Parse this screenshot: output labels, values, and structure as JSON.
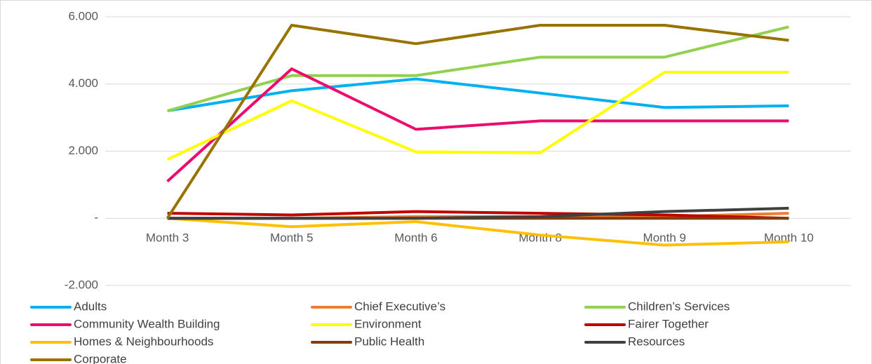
{
  "chart_data": {
    "type": "line",
    "categories": [
      "Month 3",
      "Month 5",
      "Month 6",
      "Month 8",
      "Month 9",
      "Month 10"
    ],
    "ylim": [
      -2000,
      6000
    ],
    "yticks": [
      {
        "value": -2000,
        "label": "-2.000"
      },
      {
        "value": 0,
        "label": "-"
      },
      {
        "value": 2000,
        "label": "2.000"
      },
      {
        "value": 4000,
        "label": "4.000"
      },
      {
        "value": 6000,
        "label": "6.000"
      }
    ],
    "grid": true,
    "legend": "bottom",
    "series": [
      {
        "name": "Adults",
        "color": "#00b0f0",
        "values": [
          3200,
          3800,
          4150,
          3730,
          3300,
          3350
        ]
      },
      {
        "name": "Chief Executive’s",
        "color": "#ed7d31",
        "values": [
          0,
          0,
          50,
          50,
          50,
          150
        ]
      },
      {
        "name": "Children’s Services",
        "color": "#92d050",
        "values": [
          3200,
          4250,
          4250,
          4800,
          4800,
          5700
        ]
      },
      {
        "name": "Community Wealth Building",
        "color": "#ec0c6c",
        "values": [
          1100,
          4450,
          2650,
          2900,
          2900,
          2900
        ]
      },
      {
        "name": "Environment",
        "color": "#ffff00",
        "values": [
          1750,
          3500,
          1980,
          1950,
          4350,
          4350
        ]
      },
      {
        "name": "Fairer Together",
        "color": "#c00000",
        "values": [
          150,
          100,
          200,
          150,
          100,
          0
        ]
      },
      {
        "name": "Homes & Neighbourhoods",
        "color": "#ffc000",
        "values": [
          0,
          -250,
          -100,
          -500,
          -800,
          -700
        ]
      },
      {
        "name": "Public Health",
        "color": "#843c0c",
        "values": [
          0,
          0,
          0,
          0,
          0,
          0
        ]
      },
      {
        "name": "Resources",
        "color": "#404040",
        "values": [
          0,
          0,
          0,
          50,
          200,
          300
        ]
      },
      {
        "name": "Corporate",
        "color": "#997300",
        "values": [
          0,
          5750,
          5200,
          5750,
          5750,
          5300
        ]
      }
    ]
  }
}
